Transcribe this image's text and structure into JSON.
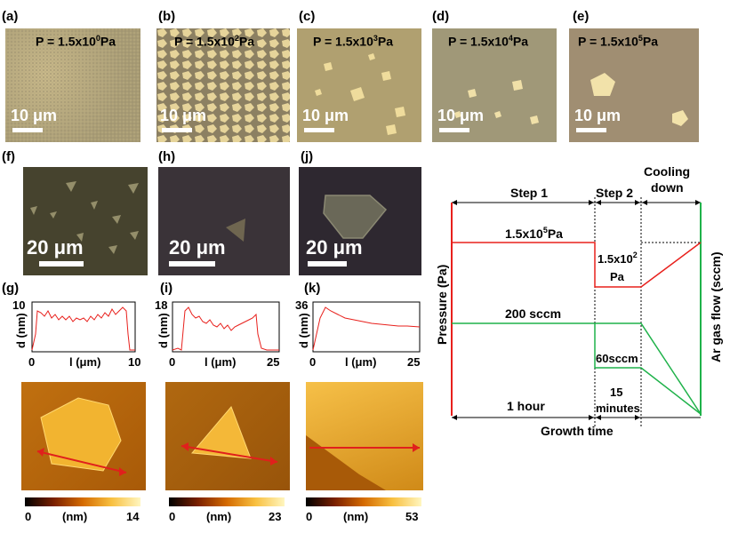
{
  "panels": {
    "a": {
      "label": "(a)",
      "pressure_base": "P = 1.5x10",
      "pressure_exp": "0",
      "pressure_unit": "Pa",
      "scale": "10 μm"
    },
    "b": {
      "label": "(b)",
      "pressure_base": "P = 1.5x10",
      "pressure_exp": "2",
      "pressure_unit": "Pa",
      "scale": "10 μm"
    },
    "c": {
      "label": "(c)",
      "pressure_base": "P = 1.5x10",
      "pressure_exp": "3",
      "pressure_unit": "Pa",
      "scale": "10 μm"
    },
    "d": {
      "label": "(d)",
      "pressure_base": "P = 1.5x10",
      "pressure_exp": "4",
      "pressure_unit": "Pa",
      "scale": "10 μm"
    },
    "e": {
      "label": "(e)",
      "pressure_base": "P = 1.5x10",
      "pressure_exp": "5",
      "pressure_unit": "Pa",
      "scale": "10 μm"
    },
    "f": {
      "label": "(f)",
      "scale": "20 μm"
    },
    "h": {
      "label": "(h)",
      "scale": "20 μm"
    },
    "j": {
      "label": "(j)",
      "scale": "20 μm"
    },
    "g": {
      "label": "(g)",
      "ylabel": "d (nm)",
      "xlabel": "l (μm)",
      "xmin": "0",
      "xmax": "10",
      "ymax": "10",
      "colorbar_min": "0",
      "colorbar_unit": "(nm)",
      "colorbar_max": "14"
    },
    "i": {
      "label": "(i)",
      "ylabel": "d (nm)",
      "xlabel": "l (μm)",
      "xmin": "0",
      "xmax": "25",
      "ymax": "18",
      "colorbar_min": "0",
      "colorbar_unit": "(nm)",
      "colorbar_max": "23"
    },
    "k": {
      "label": "(k)",
      "ylabel": "d (nm)",
      "xlabel": "l (μm)",
      "xmin": "0",
      "xmax": "25",
      "ymax": "36",
      "colorbar_min": "0",
      "colorbar_unit": "(nm)",
      "colorbar_max": "53"
    }
  },
  "diagram": {
    "step1": "Step 1",
    "step2": "Step 2",
    "cooling_line1": "Cooling",
    "cooling_line2": "down",
    "pressure_high_base": "1.5x10",
    "pressure_high_exp": "5",
    "pressure_high_unit": "Pa",
    "pressure_low_base": "1.5x10",
    "pressure_low_exp": "2",
    "pressure_low_unit": "Pa",
    "flow_high": "200 sccm",
    "flow_low": "60sccm",
    "time1": "1 hour",
    "time2_line1": "15",
    "time2_line2": "minutes",
    "ylabel_left": "Pressure (Pa)",
    "ylabel_right": "Ar gas flow (sccm)",
    "xlabel": "Growth time",
    "colors": {
      "pressure": "#e8201c",
      "flow": "#1fb24a"
    }
  }
}
